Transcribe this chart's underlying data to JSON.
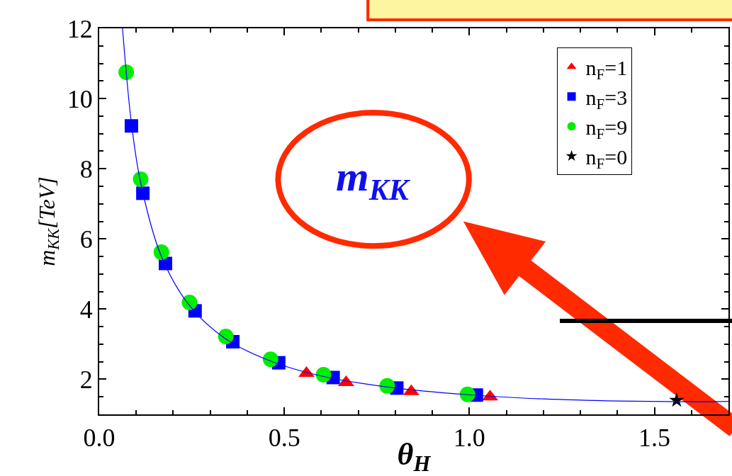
{
  "chart_data": {
    "type": "scatter",
    "xlabel": "θ$_{H}$",
    "ylabel": "m$_{KK}$[TeV]",
    "xlim": [
      0,
      1.7
    ],
    "xticks": [
      {
        "value": 0,
        "label": "0.0"
      },
      0.5,
      {
        "value": 1,
        "label": "1.0"
      },
      1.5
    ],
    "ylim": [
      1,
      12
    ],
    "yticks": [
      2,
      4,
      6,
      8,
      10,
      12
    ],
    "grid": false,
    "legend": "top right",
    "annotations": [
      "m$_{KK}$"
    ],
    "series": [
      {
        "name": "n$_{F}$=1",
        "color": "#ff0000",
        "marker": "triangle",
        "x": [
          0.56,
          0.667,
          0.843,
          1.056
        ],
        "values": [
          2.17,
          1.91,
          1.65,
          1.5
        ]
      },
      {
        "name": "n$_{F}$=3",
        "color": "#0000ff",
        "marker": "square",
        "x": [
          0.087,
          0.118,
          0.179,
          0.259,
          0.361,
          0.485,
          0.632,
          0.804,
          1.019
        ],
        "values": [
          9.22,
          7.3,
          5.3,
          3.95,
          3.07,
          2.47,
          2.05,
          1.75,
          1.55
        ]
      },
      {
        "name": "n$_{F}$=9",
        "color": "#00ee00",
        "marker": "circle",
        "x": [
          0.073,
          0.112,
          0.168,
          0.244,
          0.342,
          0.463,
          0.606,
          0.778,
          0.995
        ],
        "values": [
          10.75,
          7.7,
          5.62,
          4.19,
          3.22,
          2.57,
          2.13,
          1.81,
          1.57
        ]
      },
      {
        "name": "n$_{F}$=0",
        "color": "#000000",
        "marker": "star",
        "x": [
          1.56
        ],
        "values": [
          1.4
        ]
      },
      {
        "type": "line",
        "color": "#0000ff",
        "marker": "none",
        "line_style": "solid",
        "x": [
          0.063,
          0.073,
          0.087,
          0.112,
          0.168,
          0.244,
          0.342,
          0.463,
          0.606,
          0.778,
          0.995,
          1.2,
          1.4,
          1.57,
          1.7
        ],
        "values": [
          12,
          10.75,
          9.3,
          7.6,
          5.5,
          4.1,
          3.15,
          2.52,
          2.08,
          1.78,
          1.56,
          1.44,
          1.38,
          1.36,
          1.37
        ]
      }
    ]
  }
}
